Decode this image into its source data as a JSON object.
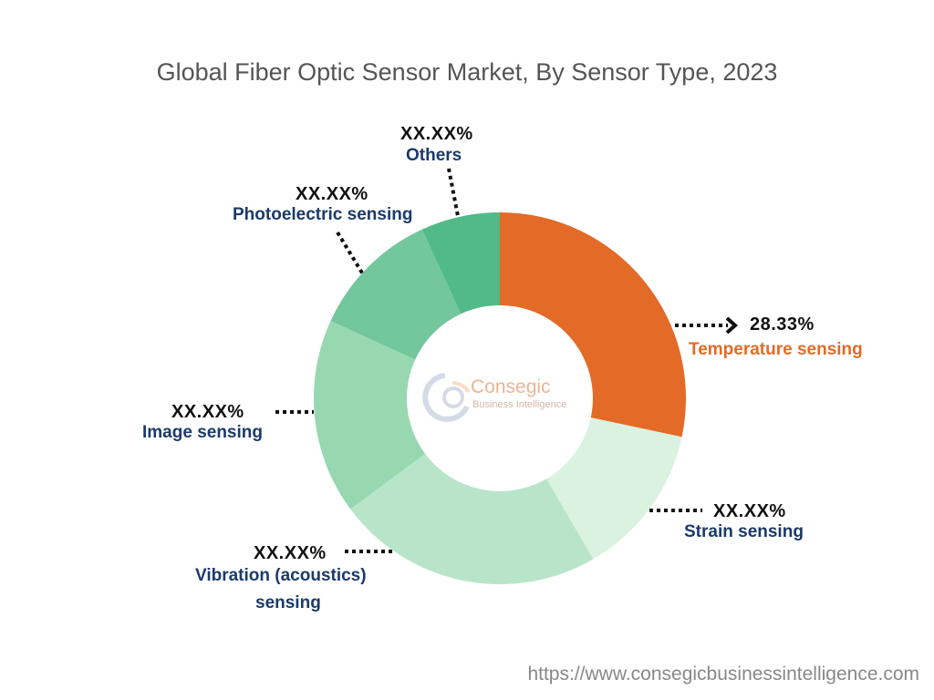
{
  "chart_data": {
    "type": "pie",
    "variant": "donut",
    "title": "Global Fiber Optic Sensor Market, By Sensor Type, 2023",
    "slices": [
      {
        "name": "Temperature sensing",
        "value": 28.33,
        "display": "28.33%",
        "color": "#E36A27",
        "label_color": "#E36A27"
      },
      {
        "name": "Strain sensing",
        "value": 13.3,
        "display": "XX.XX%",
        "color": "#DAF2E0",
        "label_color": "#1B3A6B"
      },
      {
        "name": "Vibration (acoustics) sensing",
        "name_line1": "Vibration (acoustics)",
        "name_line2": "sensing",
        "value": 23.2,
        "display": "XX.XX%",
        "color": "#B8E5C9",
        "label_color": "#1B3A6B"
      },
      {
        "name": "Image sensing",
        "value": 17.0,
        "display": "XX.XX%",
        "color": "#97D8B1",
        "label_color": "#1B3A6B"
      },
      {
        "name": "Photoelectric sensing",
        "value": 11.3,
        "display": "XX.XX%",
        "color": "#72C79D",
        "label_color": "#1B3A6B"
      },
      {
        "name": "Others",
        "value": 6.87,
        "display": "XX.XX%",
        "color": "#52BA88",
        "label_color": "#1B3A6B"
      }
    ]
  },
  "watermark": {
    "brand": "Consegic",
    "sub": "Business Intelligence"
  },
  "footer": {
    "url": "https://www.consegicbusinessintelligence.com"
  }
}
